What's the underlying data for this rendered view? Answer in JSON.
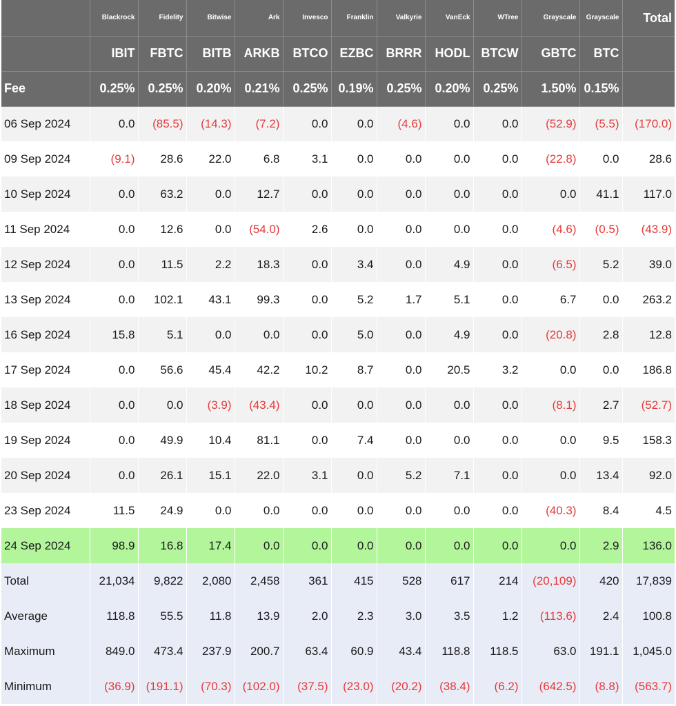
{
  "header": {
    "issuers": [
      "",
      "Blackrock",
      "Fidelity",
      "Bitwise",
      "Ark",
      "Invesco",
      "Franklin",
      "Valkyrie",
      "VanEck",
      "WTree",
      "Grayscale",
      "Grayscale",
      "Total"
    ],
    "tickers": [
      "",
      "IBIT",
      "FBTC",
      "BITB",
      "ARKB",
      "BTCO",
      "EZBC",
      "BRRR",
      "HODL",
      "BTCW",
      "GBTC",
      "BTC",
      ""
    ],
    "fees": [
      "Fee",
      "0.25%",
      "0.25%",
      "0.20%",
      "0.21%",
      "0.25%",
      "0.19%",
      "0.25%",
      "0.20%",
      "0.25%",
      "1.50%",
      "0.15%",
      ""
    ]
  },
  "colors": {
    "header_bg": "#6b6b6b",
    "negative": "#e53a3a",
    "highlight": "#b3f59b",
    "summary_bg": "#e8ecf7"
  },
  "rows": [
    {
      "label": "06 Sep 2024",
      "kind": "odd",
      "values": [
        "0.0",
        "(85.5)",
        "(14.3)",
        "(7.2)",
        "0.0",
        "0.0",
        "(4.6)",
        "0.0",
        "0.0",
        "(52.9)",
        "(5.5)",
        "(170.0)"
      ]
    },
    {
      "label": "09 Sep 2024",
      "kind": "even",
      "values": [
        "(9.1)",
        "28.6",
        "22.0",
        "6.8",
        "3.1",
        "0.0",
        "0.0",
        "0.0",
        "0.0",
        "(22.8)",
        "0.0",
        "28.6"
      ]
    },
    {
      "label": "10 Sep 2024",
      "kind": "odd",
      "values": [
        "0.0",
        "63.2",
        "0.0",
        "12.7",
        "0.0",
        "0.0",
        "0.0",
        "0.0",
        "0.0",
        "0.0",
        "41.1",
        "117.0"
      ]
    },
    {
      "label": "11 Sep 2024",
      "kind": "even",
      "values": [
        "0.0",
        "12.6",
        "0.0",
        "(54.0)",
        "2.6",
        "0.0",
        "0.0",
        "0.0",
        "0.0",
        "(4.6)",
        "(0.5)",
        "(43.9)"
      ]
    },
    {
      "label": "12 Sep 2024",
      "kind": "odd",
      "values": [
        "0.0",
        "11.5",
        "2.2",
        "18.3",
        "0.0",
        "3.4",
        "0.0",
        "4.9",
        "0.0",
        "(6.5)",
        "5.2",
        "39.0"
      ]
    },
    {
      "label": "13 Sep 2024",
      "kind": "even",
      "values": [
        "0.0",
        "102.1",
        "43.1",
        "99.3",
        "0.0",
        "5.2",
        "1.7",
        "5.1",
        "0.0",
        "6.7",
        "0.0",
        "263.2"
      ]
    },
    {
      "label": "16 Sep 2024",
      "kind": "odd",
      "values": [
        "15.8",
        "5.1",
        "0.0",
        "0.0",
        "0.0",
        "5.0",
        "0.0",
        "4.9",
        "0.0",
        "(20.8)",
        "2.8",
        "12.8"
      ]
    },
    {
      "label": "17 Sep 2024",
      "kind": "even",
      "values": [
        "0.0",
        "56.6",
        "45.4",
        "42.2",
        "10.2",
        "8.7",
        "0.0",
        "20.5",
        "3.2",
        "0.0",
        "0.0",
        "186.8"
      ]
    },
    {
      "label": "18 Sep 2024",
      "kind": "odd",
      "values": [
        "0.0",
        "0.0",
        "(3.9)",
        "(43.4)",
        "0.0",
        "0.0",
        "0.0",
        "0.0",
        "0.0",
        "(8.1)",
        "2.7",
        "(52.7)"
      ]
    },
    {
      "label": "19 Sep 2024",
      "kind": "even",
      "values": [
        "0.0",
        "49.9",
        "10.4",
        "81.1",
        "0.0",
        "7.4",
        "0.0",
        "0.0",
        "0.0",
        "0.0",
        "9.5",
        "158.3"
      ]
    },
    {
      "label": "20 Sep 2024",
      "kind": "odd",
      "values": [
        "0.0",
        "26.1",
        "15.1",
        "22.0",
        "3.1",
        "0.0",
        "5.2",
        "7.1",
        "0.0",
        "0.0",
        "13.4",
        "92.0"
      ]
    },
    {
      "label": "23 Sep 2024",
      "kind": "even",
      "values": [
        "11.5",
        "24.9",
        "0.0",
        "0.0",
        "0.0",
        "0.0",
        "0.0",
        "0.0",
        "0.0",
        "(40.3)",
        "8.4",
        "4.5"
      ]
    },
    {
      "label": "24 Sep 2024",
      "kind": "highlight",
      "values": [
        "98.9",
        "16.8",
        "17.4",
        "0.0",
        "0.0",
        "0.0",
        "0.0",
        "0.0",
        "0.0",
        "0.0",
        "2.9",
        "136.0"
      ]
    },
    {
      "label": "Total",
      "kind": "summary",
      "values": [
        "21,034",
        "9,822",
        "2,080",
        "2,458",
        "361",
        "415",
        "528",
        "617",
        "214",
        "(20,109)",
        "420",
        "17,839"
      ]
    },
    {
      "label": "Average",
      "kind": "summary",
      "values": [
        "118.8",
        "55.5",
        "11.8",
        "13.9",
        "2.0",
        "2.3",
        "3.0",
        "3.5",
        "1.2",
        "(113.6)",
        "2.4",
        "100.8"
      ]
    },
    {
      "label": "Maximum",
      "kind": "summary",
      "values": [
        "849.0",
        "473.4",
        "237.9",
        "200.7",
        "63.4",
        "60.9",
        "43.4",
        "118.8",
        "118.5",
        "63.0",
        "191.1",
        "1,045.0"
      ]
    },
    {
      "label": "Minimum",
      "kind": "summary",
      "values": [
        "(36.9)",
        "(191.1)",
        "(70.3)",
        "(102.0)",
        "(37.5)",
        "(23.0)",
        "(20.2)",
        "(38.4)",
        "(6.2)",
        "(642.5)",
        "(8.8)",
        "(563.7)"
      ]
    }
  ]
}
